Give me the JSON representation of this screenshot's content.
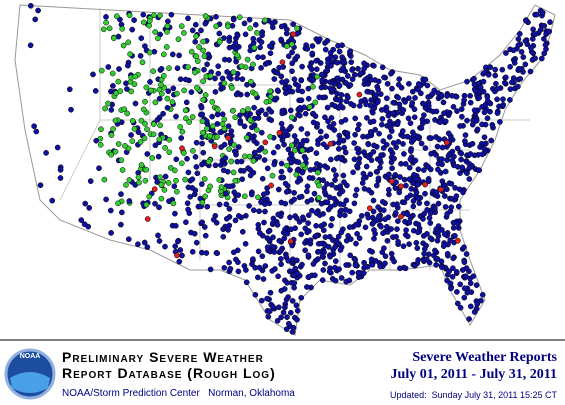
{
  "footer": {
    "logo": "NOAA",
    "title_line1": "Preliminary Severe Weather",
    "title_line2": "Report Database (Rough Log)",
    "credit": "NOAA/Storm Prediction Center   Norman, Oklahoma",
    "heading": "Severe Weather Reports",
    "period": "July 01, 2011 - July 31, 2011",
    "updated": "Updated:  Sunday July 31, 2011 15:25 CT"
  }
}
